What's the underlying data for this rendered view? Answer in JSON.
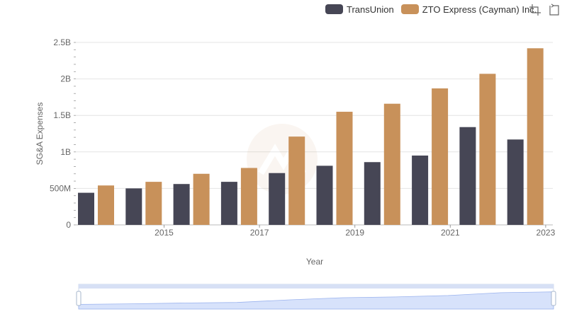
{
  "legend": {
    "items": [
      {
        "label": "TransUnion",
        "color": "#464655"
      },
      {
        "label": "ZTO Express (Cayman) Inc.",
        "color": "#c8915a"
      }
    ]
  },
  "toolbox": {
    "icons": [
      "zoom-select-icon",
      "zoom-reset-icon"
    ]
  },
  "chart_data": {
    "type": "bar",
    "categories": [
      "2014",
      "2015",
      "2016",
      "2017",
      "2018",
      "2019",
      "2020",
      "2021",
      "2022",
      "2023"
    ],
    "x_tick_labels": [
      "2015",
      "2017",
      "2019",
      "2021",
      "2023"
    ],
    "series": [
      {
        "name": "TransUnion",
        "color": "#464655",
        "values": [
          440000000.0,
          500000000.0,
          560000000.0,
          590000000.0,
          710000000.0,
          810000000.0,
          860000000.0,
          950000000.0,
          1340000000.0,
          1170000000.0
        ]
      },
      {
        "name": "ZTO Express (Cayman) Inc.",
        "color": "#c8915a",
        "values": [
          540000000.0,
          590000000.0,
          700000000.0,
          780000000.0,
          1210000000.0,
          1550000000.0,
          1660000000.0,
          1870000000.0,
          2070000000.0,
          2420000000.0
        ]
      }
    ],
    "y_ticks": [
      {
        "value": 0,
        "label": "0"
      },
      {
        "value": 500000000,
        "label": "500M"
      },
      {
        "value": 1000000000,
        "label": "1B"
      },
      {
        "value": 1500000000,
        "label": "1.5B"
      },
      {
        "value": 2000000000,
        "label": "2B"
      },
      {
        "value": 2500000000,
        "label": "2.5B"
      }
    ],
    "ylim": [
      0,
      2500000000
    ],
    "xlabel": "Year",
    "ylabel": "SG&A Expenses",
    "grid": true,
    "legend_position": "top-right"
  }
}
